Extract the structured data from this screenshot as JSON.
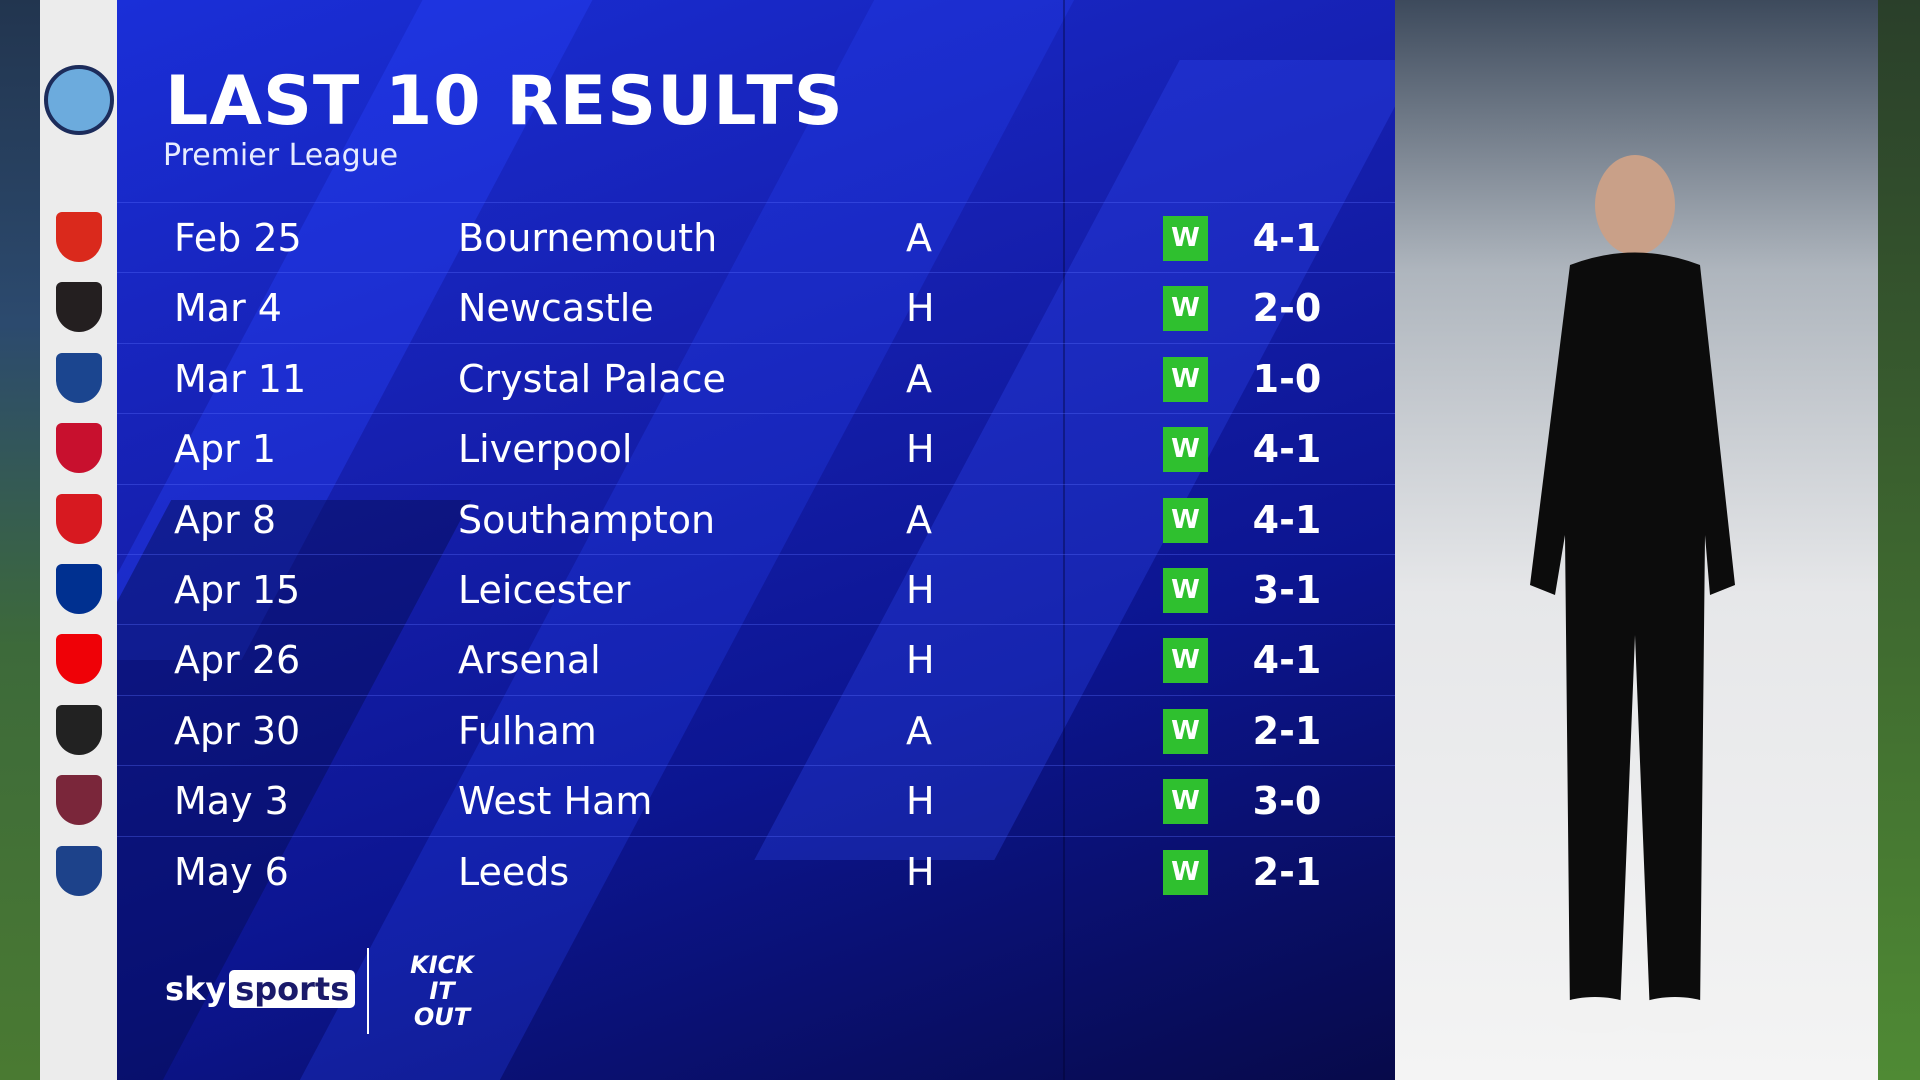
{
  "title": "LAST 10 RESULTS",
  "subtitle": "Premier League",
  "team_crest": "manchester-city",
  "colors": {
    "win": "#2fc02f",
    "panel": "#1620b0"
  },
  "results": [
    {
      "date": "Feb 25",
      "opponent": "Bournemouth",
      "venue": "A",
      "result": "W",
      "score": "4-1",
      "crest_color": "#da291c"
    },
    {
      "date": "Mar 4",
      "opponent": "Newcastle",
      "venue": "H",
      "result": "W",
      "score": "2-0",
      "crest_color": "#241f20"
    },
    {
      "date": "Mar 11",
      "opponent": "Crystal Palace",
      "venue": "A",
      "result": "W",
      "score": "1-0",
      "crest_color": "#1b458f"
    },
    {
      "date": "Apr 1",
      "opponent": "Liverpool",
      "venue": "H",
      "result": "W",
      "score": "4-1",
      "crest_color": "#c8102e"
    },
    {
      "date": "Apr 8",
      "opponent": "Southampton",
      "venue": "A",
      "result": "W",
      "score": "4-1",
      "crest_color": "#d71920"
    },
    {
      "date": "Apr 15",
      "opponent": "Leicester",
      "venue": "H",
      "result": "W",
      "score": "3-1",
      "crest_color": "#003090"
    },
    {
      "date": "Apr 26",
      "opponent": "Arsenal",
      "venue": "H",
      "result": "W",
      "score": "4-1",
      "crest_color": "#ef0107"
    },
    {
      "date": "Apr 30",
      "opponent": "Fulham",
      "venue": "A",
      "result": "W",
      "score": "2-1",
      "crest_color": "#222222"
    },
    {
      "date": "May 3",
      "opponent": "West Ham",
      "venue": "H",
      "result": "W",
      "score": "3-0",
      "crest_color": "#7a263a"
    },
    {
      "date": "May 6",
      "opponent": "Leeds",
      "venue": "H",
      "result": "W",
      "score": "2-1",
      "crest_color": "#1d428a"
    }
  ],
  "footer": {
    "brand_sky": "sky",
    "brand_sports": "sports",
    "kick_it_out": "KICK IT OUT"
  }
}
